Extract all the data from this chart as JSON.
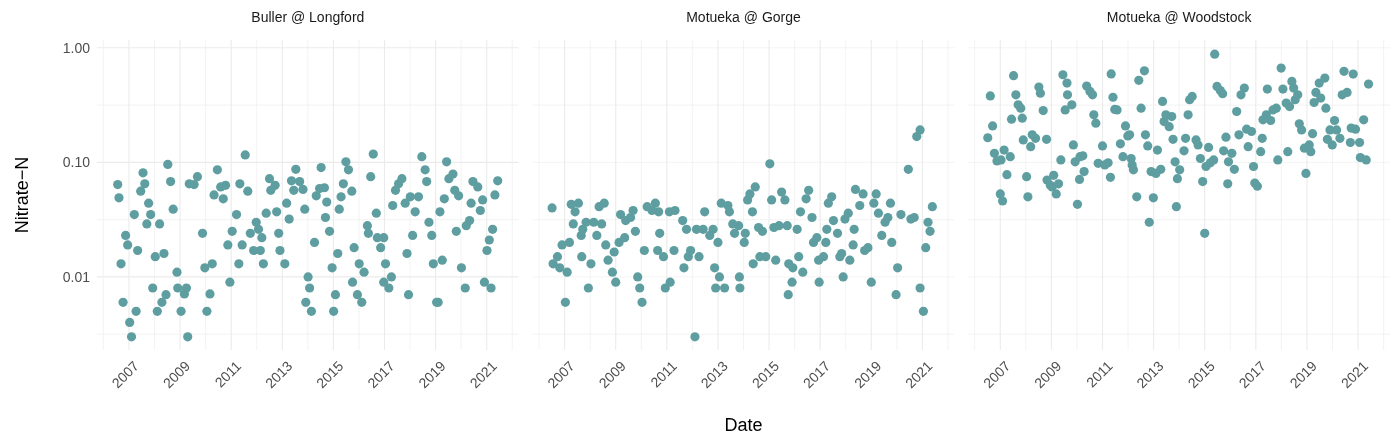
{
  "chart_data": [
    {
      "type": "scatter",
      "title": "Buller @ Longford",
      "ylabel": "Nitrate−N",
      "log": true,
      "grid": true,
      "marker": "circle",
      "xlim": [
        2005.75,
        2022.25
      ],
      "ylim": [
        0.0023,
        1.17
      ],
      "xticks": [
        {
          "value": 2006,
          "label": null
        },
        2007,
        {
          "value": 2008,
          "label": null
        },
        2009,
        {
          "value": 2010,
          "label": null
        },
        2011,
        {
          "value": 2012,
          "label": null
        },
        2013,
        {
          "value": 2014,
          "label": null
        },
        2015,
        {
          "value": 2016,
          "label": null
        },
        2017,
        {
          "value": 2018,
          "label": null
        },
        2019,
        {
          "value": 2020,
          "label": null
        },
        2021,
        {
          "value": 2022,
          "label": null
        }
      ],
      "yticks": [
        {
          "value": 0.00316,
          "label": null
        },
        {
          "value": 0.01,
          "label": "0.01"
        },
        {
          "value": 0.0316,
          "label": null
        },
        {
          "value": 0.1,
          "label": "0.10"
        },
        {
          "value": 0.316,
          "label": null
        },
        {
          "value": 1,
          "label": "1.00"
        }
      ],
      "series": [
        {
          "color": "#5f9ea0",
          "x": [
            2006.56,
            2006.61,
            2007.21,
            2006.87,
            2006.95,
            2006.69,
            2006.77,
            2007.34,
            2007.03,
            2007.1,
            2007.28,
            2007.55,
            2007.62,
            2007.46,
            2007.77,
            2007.85,
            2007.7,
            2008.2,
            2008.03,
            2008.37,
            2007.93,
            2008.11,
            2008.29,
            2008.45,
            2008.52,
            2008.63,
            2008.73,
            2008.88,
            2008.91,
            2009.04,
            2009.17,
            2009.25,
            2009.3,
            2009.36,
            2009.68,
            2009.55,
            2009.88,
            2009.97,
            2010.17,
            2010.05,
            2010.26,
            2010.33,
            2010.46,
            2010.69,
            2010.78,
            2010.59,
            2010.87,
            2010.95,
            2011.04,
            2011.21,
            2011.3,
            2011.34,
            2011.55,
            2011.65,
            2011.43,
            2011.75,
            2011.88,
            2011.98,
            2012.07,
            2012.14,
            2012.2,
            2012.26,
            2012.37,
            2012.5,
            2012.55,
            2012.72,
            2012.78,
            2012.86,
            2012.91,
            2013.1,
            2013.17,
            2013.27,
            2013.36,
            2013.45,
            2013.53,
            2013.68,
            2013.81,
            2013.88,
            2014.01,
            2014.07,
            2013.92,
            2014.14,
            2014.26,
            2014.33,
            2014.46,
            2014.52,
            2014.65,
            2014.74,
            2014.69,
            2014.85,
            2014.95,
            2015.08,
            2015.01,
            2015.17,
            2015.23,
            2015.3,
            2015.39,
            2015.49,
            2015.59,
            2015.72,
            2015.81,
            2015.75,
            2015.94,
            2016.01,
            2016.11,
            2016.2,
            2016.33,
            2016.37,
            2016.46,
            2016.56,
            2016.68,
            2016.72,
            2016.85,
            2016.97,
            2017.04,
            2016.97,
            2017.17,
            2017.27,
            2017.32,
            2017.43,
            2017.55,
            2017.68,
            2017.81,
            2017.88,
            2017.94,
            2018.01,
            2018.1,
            2018.2,
            2018.33,
            2018.46,
            2018.59,
            2018.65,
            2018.74,
            2018.85,
            2018.91,
            2019.04,
            2019.1,
            2019.17,
            2019.26,
            2019.34,
            2019.43,
            2019.52,
            2019.68,
            2019.75,
            2019.81,
            2019.9,
            2020.01,
            2020.16,
            2020.2,
            2020.33,
            2020.39,
            2020.46,
            2020.65,
            2020.75,
            2020.84,
            2020.91,
            2021.01,
            2021.1,
            2021.17,
            2021.23,
            2021.32,
            2021.43
          ],
          "values": [
            0.064,
            0.049,
            0.035,
            0.023,
            0.019,
            0.013,
            0.006,
            0.017,
            0.004,
            0.003,
            0.005,
            0.081,
            0.065,
            0.056,
            0.044,
            0.035,
            0.029,
            0.029,
            0.015,
            0.016,
            0.008,
            0.005,
            0.006,
            0.007,
            0.096,
            0.068,
            0.039,
            0.011,
            0.008,
            0.005,
            0.0071,
            0.008,
            0.003,
            0.065,
            0.075,
            0.064,
            0.024,
            0.012,
            0.0071,
            0.005,
            0.013,
            0.052,
            0.086,
            0.048,
            0.063,
            0.061,
            0.019,
            0.009,
            0.025,
            0.035,
            0.013,
            0.065,
            0.116,
            0.056,
            0.019,
            0.024,
            0.017,
            0.03,
            0.026,
            0.017,
            0.022,
            0.013,
            0.036,
            0.072,
            0.057,
            0.063,
            0.037,
            0.024,
            0.017,
            0.013,
            0.044,
            0.032,
            0.069,
            0.057,
            0.087,
            0.068,
            0.058,
            0.039,
            0.01,
            0.008,
            0.006,
            0.005,
            0.02,
            0.051,
            0.059,
            0.09,
            0.06,
            0.045,
            0.033,
            0.025,
            0.012,
            0.007,
            0.005,
            0.016,
            0.039,
            0.05,
            0.065,
            0.101,
            0.086,
            0.056,
            0.018,
            0.009,
            0.007,
            0.013,
            0.006,
            0.011,
            0.028,
            0.024,
            0.075,
            0.118,
            0.036,
            0.022,
            0.018,
            0.022,
            0.013,
            0.009,
            0.008,
            0.01,
            0.042,
            0.057,
            0.065,
            0.072,
            0.044,
            0.016,
            0.007,
            0.05,
            0.023,
            0.037,
            0.05,
            0.112,
            0.086,
            0.068,
            0.03,
            0.023,
            0.013,
            0.006,
            0.006,
            0.037,
            0.014,
            0.048,
            0.101,
            0.072,
            0.079,
            0.057,
            0.025,
            0.051,
            0.012,
            0.008,
            0.028,
            0.031,
            0.044,
            0.068,
            0.061,
            0.038,
            0.047,
            0.009,
            0.017,
            0.021,
            0.008,
            0.026,
            0.052,
            0.069
          ]
        }
      ]
    },
    {
      "type": "scatter",
      "title": "Motueka @ Gorge",
      "xlabel": "Date",
      "log": true,
      "grid": true,
      "marker": "circle",
      "tick_labels": "x",
      "xlim": [
        2005.75,
        2022.25
      ],
      "ylim": [
        0.0023,
        1.17
      ],
      "xticks": [
        {
          "value": 2006,
          "label": null
        },
        2007,
        {
          "value": 2008,
          "label": null
        },
        2009,
        {
          "value": 2010,
          "label": null
        },
        2011,
        {
          "value": 2012,
          "label": null
        },
        2013,
        {
          "value": 2014,
          "label": null
        },
        2015,
        {
          "value": 2016,
          "label": null
        },
        2017,
        {
          "value": 2018,
          "label": null
        },
        2019,
        {
          "value": 2020,
          "label": null
        },
        2021,
        {
          "value": 2022,
          "label": null
        }
      ],
      "yticks": [
        {
          "value": 0.00316,
          "label": null
        },
        {
          "value": 0.01,
          "label": null
        },
        {
          "value": 0.0316,
          "label": null
        },
        {
          "value": 0.1,
          "label": null
        },
        {
          "value": 0.316,
          "label": null
        },
        {
          "value": 1,
          "label": null
        }
      ],
      "series": [
        {
          "color": "#5f9ea0",
          "x": [
            2006.51,
            2006.72,
            2006.55,
            2006.81,
            2006.9,
            2007.1,
            2007.03,
            2007.19,
            2007.26,
            2007.54,
            2007.41,
            2007.34,
            2007.71,
            2007.65,
            2007.84,
            2007.67,
            2008.03,
            2007.93,
            2008.14,
            2008.26,
            2008.45,
            2008.35,
            2008.55,
            2008.61,
            2008.7,
            2008.87,
            2009.0,
            2008.94,
            2009.13,
            2009.35,
            2009.19,
            2009.39,
            2009.58,
            2009.68,
            2009.77,
            2009.86,
            2009.94,
            2010.03,
            2010.12,
            2010.23,
            2010.42,
            2010.55,
            2010.68,
            2010.72,
            2010.64,
            2010.87,
            2010.94,
            2011.13,
            2011.1,
            2011.28,
            2011.32,
            2011.62,
            2011.67,
            2011.77,
            2011.84,
            2011.93,
            2012.1,
            2012.16,
            2012.26,
            2012.48,
            2012.42,
            2012.68,
            2012.81,
            2012.87,
            2013.0,
            2013.06,
            2012.91,
            2013.26,
            2013.13,
            2013.39,
            2013.45,
            2013.58,
            2013.65,
            2013.81,
            2013.84,
            2013.86,
            2014.03,
            2014.07,
            2014.16,
            2014.25,
            2014.35,
            2014.46,
            2014.38,
            2014.59,
            2014.74,
            2014.64,
            2014.87,
            2015.03,
            2015.1,
            2015.19,
            2015.26,
            2015.39,
            2015.49,
            2015.62,
            2015.71,
            2015.77,
            2015.75,
            2015.9,
            2015.93,
            2016.1,
            2016.16,
            2016.32,
            2016.23,
            2016.45,
            2016.55,
            2016.68,
            2016.74,
            2016.87,
            2016.94,
            2016.96,
            2017.13,
            2017.22,
            2017.26,
            2017.32,
            2017.45,
            2017.52,
            2017.68,
            2017.77,
            2017.84,
            2017.9,
            2017.97,
            2018.1,
            2018.16,
            2018.33,
            2018.29,
            2018.38,
            2018.55,
            2018.68,
            2018.74,
            2018.87,
            2019.0,
            2019.1,
            2019.19,
            2019.28,
            2019.41,
            2019.54,
            2019.65,
            2019.75,
            2019.8,
            2019.97,
            2020.03,
            2020.16,
            2020.45,
            2020.55,
            2020.68,
            2020.78,
            2020.91,
            2020.91,
            2021.04,
            2021.13,
            2021.22,
            2021.3,
            2021.39
          ],
          "values": [
            0.04,
            0.015,
            0.013,
            0.012,
            0.019,
            0.011,
            0.006,
            0.02,
            0.043,
            0.044,
            0.037,
            0.029,
            0.026,
            0.023,
            0.03,
            0.015,
            0.013,
            0.008,
            0.03,
            0.023,
            0.029,
            0.041,
            0.044,
            0.019,
            0.014,
            0.011,
            0.009,
            0.0165,
            0.02,
            0.022,
            0.035,
            0.031,
            0.033,
            0.038,
            0.025,
            0.01,
            0.008,
            0.006,
            0.017,
            0.041,
            0.038,
            0.044,
            0.037,
            0.024,
            0.017,
            0.015,
            0.008,
            0.009,
            0.037,
            0.017,
            0.038,
            0.031,
            0.012,
            0.026,
            0.015,
            0.017,
            0.003,
            0.026,
            0.015,
            0.037,
            0.026,
            0.023,
            0.026,
            0.012,
            0.02,
            0.01,
            0.008,
            0.008,
            0.044,
            0.042,
            0.037,
            0.029,
            0.024,
            0.028,
            0.01,
            0.008,
            0.02,
            0.024,
            0.047,
            0.053,
            0.037,
            0.061,
            0.013,
            0.027,
            0.025,
            0.015,
            0.015,
            0.097,
            0.047,
            0.027,
            0.014,
            0.028,
            0.055,
            0.047,
            0.028,
            0.013,
            0.007,
            0.009,
            0.012,
            0.026,
            0.015,
            0.011,
            0.037,
            0.048,
            0.057,
            0.033,
            0.02,
            0.022,
            0.014,
            0.009,
            0.015,
            0.02,
            0.026,
            0.044,
            0.05,
            0.031,
            0.024,
            0.015,
            0.016,
            0.01,
            0.032,
            0.036,
            0.014,
            0.026,
            0.019,
            0.058,
            0.042,
            0.053,
            0.017,
            0.018,
            0.009,
            0.044,
            0.053,
            0.036,
            0.023,
            0.03,
            0.033,
            0.044,
            0.02,
            0.007,
            0.012,
            0.035,
            0.087,
            0.032,
            0.033,
            0.168,
            0.192,
            0.008,
            0.005,
            0.018,
            0.03,
            0.025,
            0.041
          ]
        }
      ]
    },
    {
      "type": "scatter",
      "title": "Motueka @ Woodstock",
      "log": true,
      "grid": true,
      "marker": "circle",
      "tick_labels": "x",
      "xlim": [
        2005.75,
        2022.25
      ],
      "ylim": [
        0.0023,
        1.17
      ],
      "xticks": [
        {
          "value": 2006,
          "label": null
        },
        2007,
        {
          "value": 2008,
          "label": null
        },
        2009,
        {
          "value": 2010,
          "label": null
        },
        2011,
        {
          "value": 2012,
          "label": null
        },
        2013,
        {
          "value": 2014,
          "label": null
        },
        2015,
        {
          "value": 2016,
          "label": null
        },
        2017,
        {
          "value": 2018,
          "label": null
        },
        2019,
        {
          "value": 2020,
          "label": null
        },
        2021,
        {
          "value": 2022,
          "label": null
        }
      ],
      "yticks": [
        {
          "value": 0.00316,
          "label": null
        },
        {
          "value": 0.01,
          "label": null
        },
        {
          "value": 0.0316,
          "label": null
        },
        {
          "value": 0.1,
          "label": null
        },
        {
          "value": 0.316,
          "label": null
        },
        {
          "value": 1,
          "label": null
        }
      ],
      "series": [
        {
          "color": "#5f9ea0",
          "x": [
            2006.61,
            2006.51,
            2006.7,
            2006.77,
            2006.87,
            2007.03,
            2007.15,
            2007.39,
            2007.26,
            2007.0,
            2007.09,
            2007.52,
            2007.61,
            2007.7,
            2007.8,
            2007.44,
            2007.86,
            2007.9,
            2008.03,
            2008.08,
            2008.25,
            2008.19,
            2008.38,
            2008.51,
            2008.57,
            2008.68,
            2008.81,
            2008.83,
            2008.96,
            2009.09,
            2009.19,
            2009.03,
            2009.28,
            2009.37,
            2009.45,
            2009.61,
            2009.63,
            2009.54,
            2009.8,
            2009.86,
            2009.93,
            2010.02,
            2010.12,
            2010.23,
            2010.1,
            2010.28,
            2010.38,
            2010.51,
            2010.61,
            2010.66,
            2010.74,
            2010.83,
            2011.0,
            2011.09,
            2011.22,
            2011.31,
            2011.34,
            2011.41,
            2011.48,
            2011.57,
            2011.7,
            2011.8,
            2011.9,
            2011.99,
            2012.06,
            2012.12,
            2012.21,
            2012.16,
            2012.34,
            2012.42,
            2012.51,
            2012.64,
            2012.68,
            2012.77,
            2012.83,
            2012.9,
            2012.99,
            2013.15,
            2013.09,
            2013.28,
            2013.35,
            2013.41,
            2013.48,
            2013.61,
            2013.71,
            2013.76,
            2013.84,
            2013.93,
            2014.02,
            2013.89,
            2014.19,
            2014.25,
            2014.35,
            2014.41,
            2014.51,
            2014.66,
            2014.74,
            2014.83,
            2014.92,
            2015.0,
            2015.05,
            2015.15,
            2015.22,
            2015.35,
            2015.39,
            2015.48,
            2015.61,
            2015.7,
            2015.74,
            2015.83,
            2015.93,
            2015.9,
            2016.06,
            2016.16,
            2016.25,
            2016.34,
            2016.42,
            2016.55,
            2016.64,
            2016.7,
            2016.83,
            2016.91,
            2016.96,
            2017.06,
            2017.19,
            2017.25,
            2017.28,
            2017.45,
            2017.41,
            2017.58,
            2017.67,
            2017.8,
            2017.86,
            2017.99,
            2018.06,
            2018.19,
            2018.25,
            2018.32,
            2018.41,
            2018.48,
            2018.54,
            2018.64,
            2018.7,
            2018.79,
            2018.9,
            2018.96,
            2019.09,
            2019.15,
            2019.22,
            2019.28,
            2019.35,
            2019.48,
            2019.54,
            2019.7,
            2019.74,
            2019.8,
            2019.9,
            2019.99,
            2020.08,
            2020.16,
            2020.29,
            2020.45,
            2020.38,
            2020.57,
            2020.7,
            2020.73,
            2020.81,
            2020.9,
            2021.06,
            2021.09,
            2021.22,
            2021.32,
            2021.41
          ],
          "values": [
            0.38,
            0.164,
            0.208,
            0.12,
            0.103,
            0.105,
            0.128,
            0.112,
            0.078,
            0.053,
            0.046,
            0.571,
            0.389,
            0.318,
            0.297,
            0.238,
            0.243,
            0.157,
            0.075,
            0.05,
            0.174,
            0.137,
            0.162,
            0.454,
            0.402,
            0.283,
            0.159,
            0.07,
            0.063,
            0.077,
            0.053,
            0.061,
            0.065,
            0.105,
            0.582,
            0.492,
            0.389,
            0.287,
            0.318,
            0.142,
            0.101,
            0.043,
            0.112,
            0.114,
            0.071,
            0.083,
            0.463,
            0.416,
            0.389,
            0.26,
            0.22,
            0.098,
            0.139,
            0.095,
            0.099,
            0.074,
            0.591,
            0.37,
            0.29,
            0.287,
            0.145,
            0.112,
            0.208,
            0.17,
            0.174,
            0.108,
            0.086,
            0.095,
            0.05,
            0.52,
            0.297,
            0.63,
            0.174,
            0.139,
            0.03,
            0.083,
            0.049,
            0.128,
            0.08,
            0.087,
            0.34,
            0.227,
            0.26,
            0.205,
            0.251,
            0.159,
            0.101,
            0.072,
            0.086,
            0.041,
            0.126,
            0.162,
            0.26,
            0.352,
            0.376,
            0.157,
            0.142,
            0.108,
            0.068,
            0.024,
            0.092,
            0.135,
            0.099,
            0.105,
            0.88,
            0.46,
            0.424,
            0.398,
            0.126,
            0.166,
            0.101,
            0.065,
            0.12,
            0.087,
            0.278,
            0.174,
            0.389,
            0.445,
            0.195,
            0.137,
            0.186,
            0.092,
            0.066,
            0.062,
            0.124,
            0.162,
            0.235,
            0.436,
            0.26,
            0.232,
            0.287,
            0.297,
            0.105,
            0.665,
            0.436,
            0.329,
            0.124,
            0.307,
            0.509,
            0.445,
            0.352,
            0.389,
            0.217,
            0.192,
            0.133,
            0.08,
            0.142,
            0.124,
            0.178,
            0.333,
            0.408,
            0.492,
            0.364,
            0.544,
            0.297,
            0.159,
            0.192,
            0.142,
            0.232,
            0.192,
            0.162,
            0.623,
            0.389,
            0.408,
            0.149,
            0.199,
            0.59,
            0.195,
            0.149,
            0.11,
            0.235,
            0.105,
            0.482
          ]
        }
      ]
    }
  ]
}
